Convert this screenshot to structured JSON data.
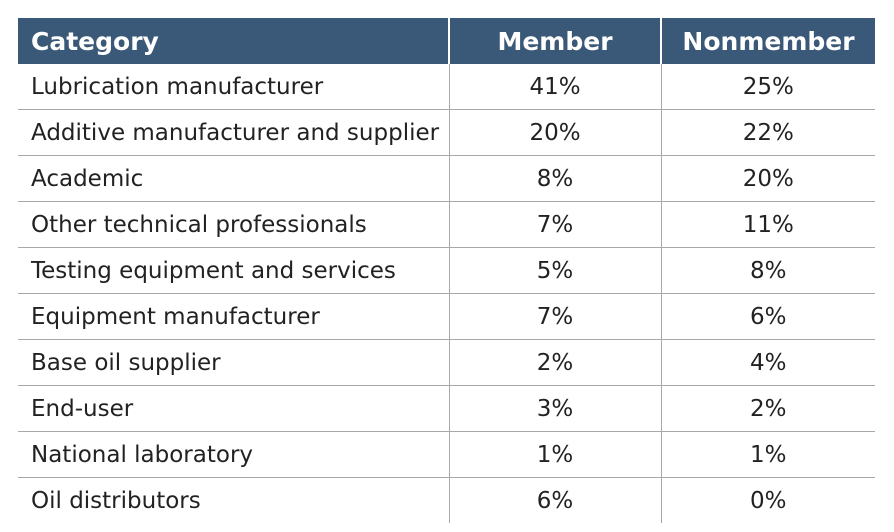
{
  "table": {
    "headers": [
      "Category",
      "Member",
      "Nonmember"
    ],
    "rows": [
      [
        "Lubrication manufacturer",
        "41%",
        "25%"
      ],
      [
        "Additive manufacturer and supplier",
        "20%",
        "22%"
      ],
      [
        "Academic",
        "8%",
        "20%"
      ],
      [
        "Other technical professionals",
        "7%",
        "11%"
      ],
      [
        "Testing equipment and services",
        "5%",
        "8%"
      ],
      [
        "Equipment manufacturer",
        "7%",
        "6%"
      ],
      [
        "Base oil supplier",
        "2%",
        "4%"
      ],
      [
        "End-user",
        "3%",
        "2%"
      ],
      [
        "National laboratory",
        "1%",
        "1%"
      ],
      [
        "Oil distributors",
        "6%",
        "0%"
      ]
    ]
  },
  "colors": {
    "header_bg": "#3a5878",
    "header_text": "#ffffff",
    "grid_line": "#a8a8a8"
  }
}
